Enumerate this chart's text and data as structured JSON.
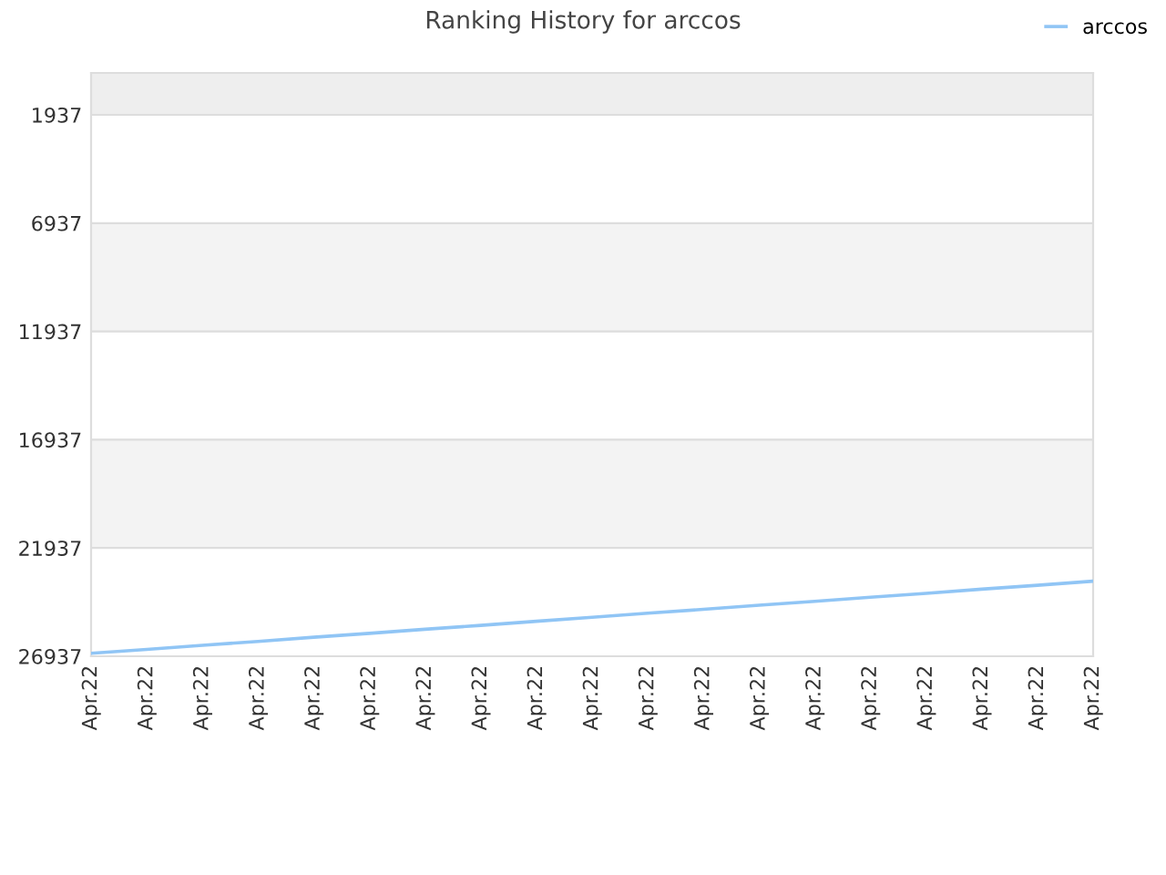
{
  "chart_data": {
    "type": "line",
    "title": "Ranking History for arccos",
    "categories": [
      "Apr.22",
      "Apr.22",
      "Apr.22",
      "Apr.22",
      "Apr.22",
      "Apr.22",
      "Apr.22",
      "Apr.22",
      "Apr.22",
      "Apr.22",
      "Apr.22",
      "Apr.22",
      "Apr.22",
      "Apr.22",
      "Apr.22",
      "Apr.22",
      "Apr.22",
      "Apr.22",
      "Apr.22"
    ],
    "series": [
      {
        "name": "arccos",
        "color": "#90c5f5",
        "values": [
          26800,
          26620,
          26430,
          26250,
          26060,
          25880,
          25690,
          25510,
          25320,
          25140,
          24950,
          24770,
          24580,
          24400,
          24210,
          24030,
          23840,
          23660,
          23470
        ]
      }
    ],
    "ylim": [
      26937,
      1
    ],
    "yticks": [
      1937,
      6937,
      11937,
      16937,
      21937,
      26937
    ],
    "bands": [
      {
        "axis": "y",
        "from": 1,
        "to": 1937,
        "color": "#eeeeee"
      },
      {
        "axis": "y",
        "from": 6937,
        "to": 11937,
        "color": "#f3f3f3"
      },
      {
        "axis": "y",
        "from": 16937,
        "to": 21937,
        "color": "#f3f3f3"
      }
    ],
    "grid": "y",
    "legend": "top right",
    "marker": "none",
    "line_style": "solid"
  }
}
